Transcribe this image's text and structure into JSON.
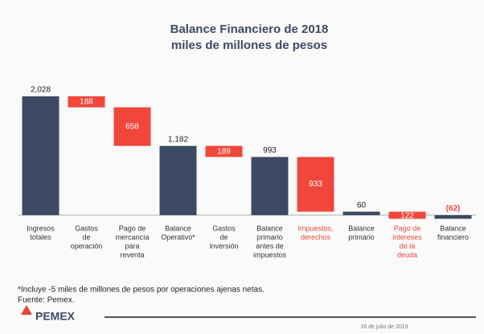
{
  "chart_data": {
    "type": "waterfall",
    "title": "Balance Financiero de 2018",
    "subtitle": "miles de millones de pesos",
    "categories": [
      [
        "Ingresos",
        "totales"
      ],
      [
        "Gastos",
        "de",
        "operación"
      ],
      [
        "Pago de",
        "mercancía",
        "para",
        "reventa"
      ],
      [
        "Balance",
        "Operativo*"
      ],
      [
        "Gastos",
        "de",
        "inversión"
      ],
      [
        "Balance",
        "primario",
        "antes de",
        "impuestos"
      ],
      [
        "Impuestos,",
        "derechos"
      ],
      [
        "Balance",
        "primario"
      ],
      [
        "Pago de",
        "intereses",
        "de la",
        "deuda"
      ],
      [
        "Balance",
        "financiero"
      ]
    ],
    "values": [
      2028,
      -188,
      -658,
      1182,
      -189,
      993,
      -933,
      60,
      -122,
      -62
    ],
    "value_labels": [
      "2,028",
      "188",
      "658",
      "1,182",
      "189",
      "993",
      "933",
      "60",
      "122",
      "(62)"
    ],
    "measure": [
      "total",
      "relative",
      "relative",
      "total",
      "relative",
      "total",
      "relative",
      "total",
      "relative",
      "total"
    ],
    "total_color": "#3d4a63",
    "change_color": "#f0473a",
    "label_colors": [
      "#333333",
      "#333333",
      "#333333",
      "#333333",
      "#333333",
      "#333333",
      "#e8453a",
      "#333333",
      "#e8453a",
      "#333333"
    ],
    "footnote": "*Incluye -5 miles de millones de pesos por operaciones ajenas netas.",
    "source": "Fuente: Pemex.",
    "logo": "PEMEX",
    "date": "16 de julio de 2019"
  }
}
